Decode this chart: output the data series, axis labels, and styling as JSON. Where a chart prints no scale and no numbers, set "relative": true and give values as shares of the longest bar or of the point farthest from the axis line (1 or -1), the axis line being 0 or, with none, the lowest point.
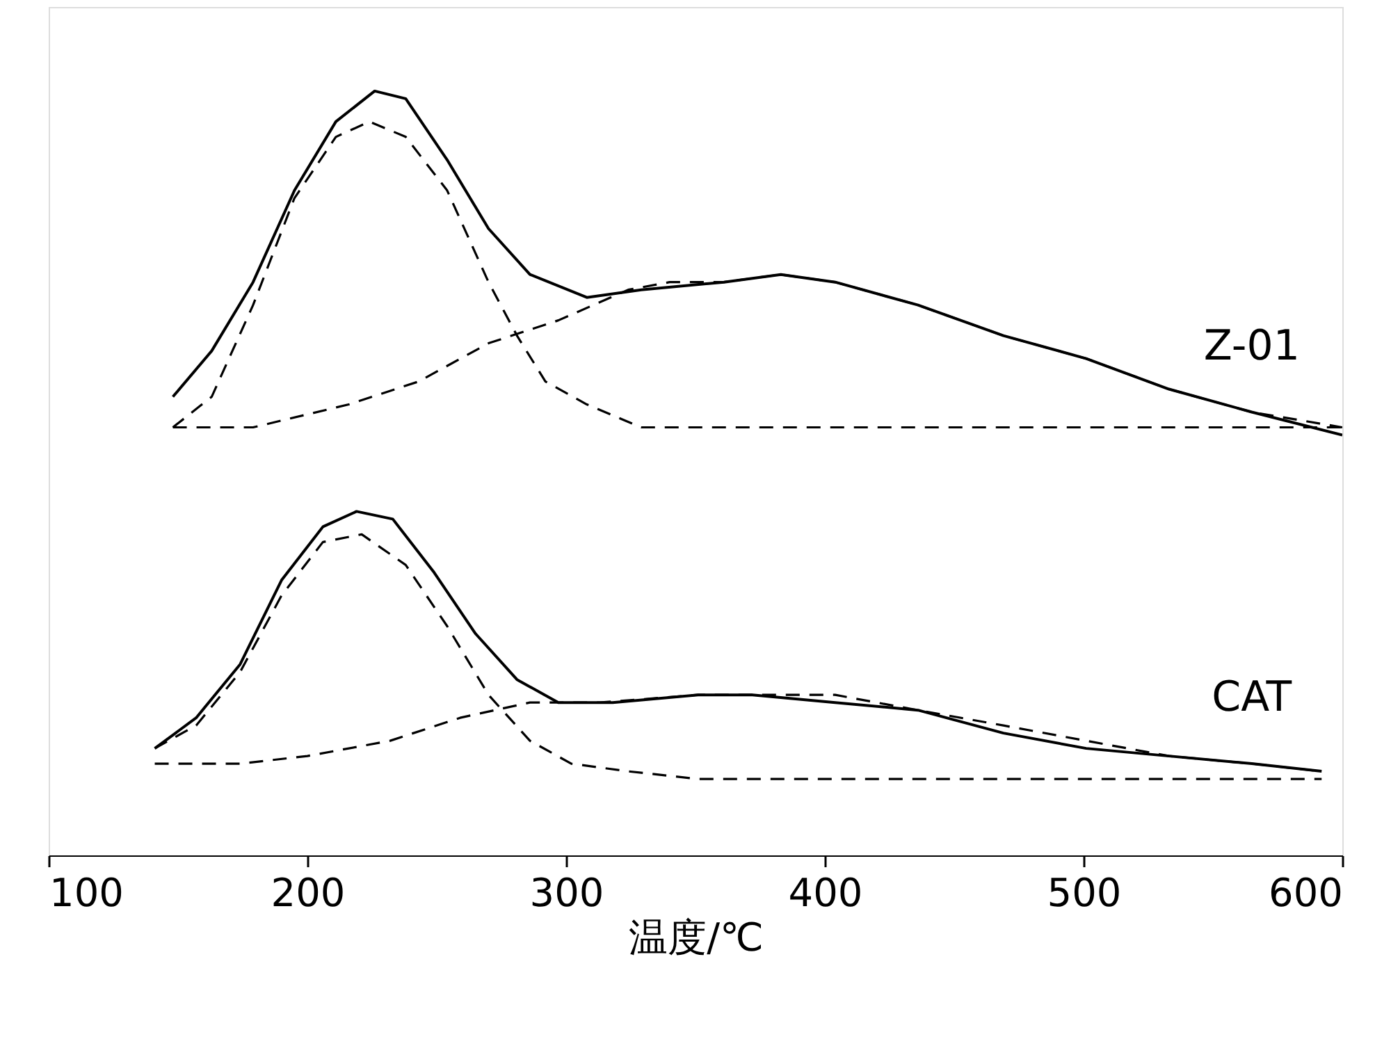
{
  "chart_data": {
    "type": "line",
    "relative": true,
    "xlabel": "温度/℃",
    "xlim": [
      100,
      600
    ],
    "xticks": [
      100,
      200,
      300,
      400,
      500,
      600
    ],
    "grid": false,
    "tick_labels": "x",
    "series": [
      {
        "name": "Z-01",
        "color": "#000000",
        "line_style": "solid",
        "x": [
          148,
          163,
          179,
          195,
          211,
          226,
          238,
          254,
          270,
          286,
          308,
          329,
          361,
          383,
          404,
          436,
          469,
          501,
          533,
          565,
          600
        ],
        "values": [
          0.6,
          0.66,
          0.75,
          0.87,
          0.96,
          1.0,
          0.99,
          0.91,
          0.82,
          0.76,
          0.73,
          0.74,
          0.75,
          0.76,
          0.75,
          0.72,
          0.68,
          0.65,
          0.61,
          0.58,
          0.55
        ]
      },
      {
        "color": "#000000",
        "line_style": "dashed",
        "x": [
          148,
          163,
          179,
          195,
          211,
          224,
          238,
          254,
          270,
          281,
          292,
          308,
          329,
          351,
          600
        ],
        "values": [
          0.56,
          0.6,
          0.72,
          0.86,
          0.94,
          0.96,
          0.94,
          0.87,
          0.75,
          0.68,
          0.62,
          0.59,
          0.56,
          0.56,
          0.56
        ]
      },
      {
        "color": "#000000",
        "line_style": "dashed",
        "x": [
          148,
          179,
          216,
          243,
          270,
          297,
          324,
          340,
          361,
          383,
          404,
          436,
          469,
          501,
          533,
          565,
          600
        ],
        "values": [
          0.56,
          0.56,
          0.59,
          0.62,
          0.67,
          0.7,
          0.74,
          0.75,
          0.75,
          0.76,
          0.75,
          0.72,
          0.68,
          0.65,
          0.61,
          0.58,
          0.56
        ]
      },
      {
        "name": "CAT",
        "color": "#000000",
        "line_style": "solid",
        "x": [
          141,
          157,
          174,
          190,
          206,
          219,
          233,
          249,
          265,
          281,
          297,
          318,
          351,
          372,
          404,
          436,
          469,
          501,
          533,
          565,
          592
        ],
        "values": [
          0.14,
          0.18,
          0.25,
          0.36,
          0.43,
          0.45,
          0.44,
          0.37,
          0.29,
          0.23,
          0.2,
          0.2,
          0.21,
          0.21,
          0.2,
          0.19,
          0.16,
          0.14,
          0.13,
          0.12,
          0.11
        ]
      },
      {
        "color": "#000000",
        "line_style": "dashed",
        "x": [
          141,
          157,
          174,
          190,
          206,
          221,
          238,
          254,
          270,
          286,
          302,
          324,
          351,
          592
        ],
        "values": [
          0.14,
          0.17,
          0.24,
          0.34,
          0.41,
          0.42,
          0.38,
          0.3,
          0.21,
          0.15,
          0.12,
          0.11,
          0.1,
          0.1
        ]
      },
      {
        "color": "#000000",
        "line_style": "dashed",
        "x": [
          141,
          174,
          200,
          232,
          259,
          286,
          313,
          351,
          372,
          404,
          436,
          469,
          501,
          533,
          565,
          592
        ],
        "values": [
          0.12,
          0.12,
          0.13,
          0.15,
          0.18,
          0.2,
          0.2,
          0.21,
          0.21,
          0.21,
          0.19,
          0.17,
          0.15,
          0.13,
          0.12,
          0.11
        ]
      }
    ]
  }
}
